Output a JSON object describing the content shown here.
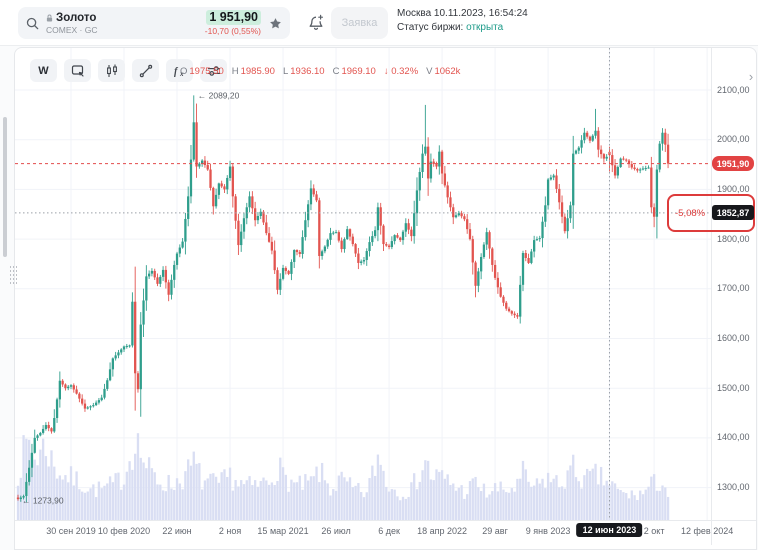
{
  "header": {
    "instrument": {
      "name": "Золото",
      "exchange": "COMEX · GC",
      "price": "1 951,90",
      "change": "-10,70 (0,55%)"
    },
    "order_button": "Заявка",
    "clock": "Москва 10.11.2023, 16:54:24",
    "status_label": "Статус биржи: ",
    "status_value": "открыта"
  },
  "toolbar": {
    "timeframe_label": "W"
  },
  "ohlc_legend": {
    "items": [
      {
        "label": "O",
        "value": "1975.50"
      },
      {
        "label": "H",
        "value": "1985.90"
      },
      {
        "label": "L",
        "value": "1936.10"
      },
      {
        "label": "C",
        "value": "1969.10"
      },
      {
        "label": "",
        "value": "↓ 0.32%"
      },
      {
        "label": "V",
        "value": "1062k"
      }
    ]
  },
  "chart_data": {
    "type": "candlestick",
    "title": "Золото COMEX · GC, недельный график",
    "timeframe": "W",
    "grid": true,
    "y_ticks": [
      2100,
      2000,
      1900,
      1800,
      1700,
      1600,
      1500,
      1400,
      1300
    ],
    "y_tick_format": "0,00",
    "x_labels": [
      {
        "text": "30 сен 2019",
        "week": 19
      },
      {
        "text": "10 фев 2020",
        "week": 38
      },
      {
        "text": "22 июн",
        "week": 57
      },
      {
        "text": "2 ноя",
        "week": 76
      },
      {
        "text": "15 мар 2021",
        "week": 95
      },
      {
        "text": "26 июл",
        "week": 114
      },
      {
        "text": "6 дек",
        "week": 133
      },
      {
        "text": "18 апр 2022",
        "week": 152
      },
      {
        "text": "29 авг",
        "week": 171
      },
      {
        "text": "9 янв 2023",
        "week": 190
      },
      {
        "text": "12 июн 2023",
        "week": 212,
        "highlight": true
      },
      {
        "text": "2 окт",
        "week": 228
      },
      {
        "text": "12 фев 2024",
        "week": 247
      }
    ],
    "current_price": {
      "value": 1951.9,
      "label": "1951,90"
    },
    "crosshair": {
      "week": 212,
      "price": 1852.87,
      "price_label": "1852,87",
      "percent_label": "-5,08%",
      "date_label": "12 июн 2023"
    },
    "annotations": [
      {
        "week": 63,
        "price": 2089.2,
        "text": "2089,20"
      },
      {
        "week": 0,
        "price": 1273.9,
        "text": "1273,90"
      }
    ],
    "weekly_close_anchors": [
      [
        0,
        1277
      ],
      [
        2,
        1283
      ],
      [
        4,
        1340
      ],
      [
        6,
        1400
      ],
      [
        8,
        1410
      ],
      [
        10,
        1426
      ],
      [
        12,
        1413
      ],
      [
        13,
        1440
      ],
      [
        15,
        1515
      ],
      [
        17,
        1500
      ],
      [
        19,
        1506
      ],
      [
        21,
        1489
      ],
      [
        24,
        1459
      ],
      [
        27,
        1466
      ],
      [
        30,
        1481
      ],
      [
        32,
        1516
      ],
      [
        34,
        1560
      ],
      [
        36,
        1572
      ],
      [
        38,
        1584
      ],
      [
        40,
        1586
      ],
      [
        41,
        1674
      ],
      [
        42,
        1530
      ],
      [
        43,
        1498
      ],
      [
        44,
        1628
      ],
      [
        46,
        1725
      ],
      [
        48,
        1736
      ],
      [
        50,
        1710
      ],
      [
        52,
        1738
      ],
      [
        54,
        1688
      ],
      [
        56,
        1748
      ],
      [
        57,
        1771
      ],
      [
        59,
        1795
      ],
      [
        61,
        1886
      ],
      [
        62,
        1960
      ],
      [
        63,
        2035
      ],
      [
        64,
        1946
      ],
      [
        66,
        1958
      ],
      [
        68,
        1940
      ],
      [
        70,
        1866
      ],
      [
        72,
        1912
      ],
      [
        74,
        1900
      ],
      [
        76,
        1946
      ],
      [
        77,
        1886
      ],
      [
        79,
        1788
      ],
      [
        81,
        1842
      ],
      [
        83,
        1886
      ],
      [
        85,
        1838
      ],
      [
        87,
        1855
      ],
      [
        89,
        1812
      ],
      [
        91,
        1777
      ],
      [
        93,
        1698
      ],
      [
        95,
        1742
      ],
      [
        97,
        1730
      ],
      [
        99,
        1778
      ],
      [
        101,
        1770
      ],
      [
        103,
        1838
      ],
      [
        105,
        1902
      ],
      [
        107,
        1878
      ],
      [
        108,
        1766
      ],
      [
        110,
        1785
      ],
      [
        112,
        1812
      ],
      [
        114,
        1814
      ],
      [
        116,
        1780
      ],
      [
        118,
        1820
      ],
      [
        120,
        1790
      ],
      [
        122,
        1752
      ],
      [
        124,
        1758
      ],
      [
        126,
        1794
      ],
      [
        128,
        1818
      ],
      [
        129,
        1864
      ],
      [
        131,
        1790
      ],
      [
        133,
        1784
      ],
      [
        135,
        1808
      ],
      [
        137,
        1798
      ],
      [
        139,
        1832
      ],
      [
        141,
        1806
      ],
      [
        143,
        1898
      ],
      [
        145,
        1972
      ],
      [
        146,
        1986
      ],
      [
        147,
        1922
      ],
      [
        148,
        1956
      ],
      [
        150,
        1946
      ],
      [
        151,
        1976
      ],
      [
        152,
        1932
      ],
      [
        154,
        1884
      ],
      [
        156,
        1844
      ],
      [
        158,
        1852
      ],
      [
        160,
        1840
      ],
      [
        162,
        1800
      ],
      [
        164,
        1706
      ],
      [
        166,
        1764
      ],
      [
        168,
        1814
      ],
      [
        170,
        1748
      ],
      [
        171,
        1722
      ],
      [
        173,
        1684
      ],
      [
        175,
        1660
      ],
      [
        177,
        1650
      ],
      [
        179,
        1644
      ],
      [
        181,
        1772
      ],
      [
        183,
        1752
      ],
      [
        185,
        1798
      ],
      [
        187,
        1802
      ],
      [
        189,
        1868
      ],
      [
        190,
        1920
      ],
      [
        192,
        1928
      ],
      [
        194,
        1874
      ],
      [
        196,
        1816
      ],
      [
        198,
        1868
      ],
      [
        199,
        1972
      ],
      [
        201,
        1984
      ],
      [
        203,
        2014
      ],
      [
        205,
        1998
      ],
      [
        207,
        2018
      ],
      [
        208,
        1980
      ],
      [
        210,
        1962
      ],
      [
        212,
        1969.1
      ],
      [
        214,
        1928
      ],
      [
        216,
        1962
      ],
      [
        218,
        1958
      ],
      [
        220,
        1944
      ],
      [
        222,
        1938
      ],
      [
        224,
        1942
      ],
      [
        226,
        1944
      ],
      [
        227,
        1864
      ],
      [
        228,
        1845
      ],
      [
        229,
        1940
      ],
      [
        230,
        1992
      ],
      [
        231,
        2014
      ],
      [
        232,
        1990
      ],
      [
        233,
        1951.9
      ]
    ],
    "volume_anchors": [
      [
        0,
        0.55
      ],
      [
        2,
        0.75
      ],
      [
        4,
        0.9
      ],
      [
        6,
        0.7
      ],
      [
        10,
        0.85
      ],
      [
        13,
        0.6
      ],
      [
        17,
        0.5
      ],
      [
        21,
        0.45
      ],
      [
        26,
        0.35
      ],
      [
        30,
        0.35
      ],
      [
        34,
        0.4
      ],
      [
        38,
        0.5
      ],
      [
        41,
        0.8
      ],
      [
        42,
        1.0
      ],
      [
        43,
        0.85
      ],
      [
        46,
        0.6
      ],
      [
        50,
        0.45
      ],
      [
        55,
        0.4
      ],
      [
        60,
        0.5
      ],
      [
        63,
        0.65
      ],
      [
        66,
        0.45
      ],
      [
        72,
        0.4
      ],
      [
        76,
        0.5
      ],
      [
        80,
        0.4
      ],
      [
        85,
        0.38
      ],
      [
        90,
        0.45
      ],
      [
        93,
        0.62
      ],
      [
        95,
        0.5
      ],
      [
        100,
        0.38
      ],
      [
        105,
        0.42
      ],
      [
        108,
        0.55
      ],
      [
        112,
        0.35
      ],
      [
        116,
        0.45
      ],
      [
        120,
        0.35
      ],
      [
        125,
        0.3
      ],
      [
        129,
        0.72
      ],
      [
        133,
        0.38
      ],
      [
        137,
        0.32
      ],
      [
        141,
        0.35
      ],
      [
        145,
        0.6
      ],
      [
        146,
        0.68
      ],
      [
        148,
        0.5
      ],
      [
        152,
        0.48
      ],
      [
        156,
        0.4
      ],
      [
        160,
        0.32
      ],
      [
        164,
        0.42
      ],
      [
        168,
        0.3
      ],
      [
        171,
        0.35
      ],
      [
        175,
        0.33
      ],
      [
        179,
        0.38
      ],
      [
        181,
        0.52
      ],
      [
        185,
        0.35
      ],
      [
        190,
        0.48
      ],
      [
        194,
        0.4
      ],
      [
        199,
        0.58
      ],
      [
        203,
        0.45
      ],
      [
        207,
        0.5
      ],
      [
        212,
        0.42
      ],
      [
        216,
        0.3
      ],
      [
        220,
        0.28
      ],
      [
        224,
        0.3
      ],
      [
        227,
        0.4
      ],
      [
        229,
        0.42
      ],
      [
        231,
        0.45
      ],
      [
        233,
        0.28
      ]
    ],
    "special_candles": {
      "0": {
        "low": 1273.9
      },
      "42": {
        "low": 1455
      },
      "63": {
        "high": 2089.2
      },
      "146": {
        "high": 2070
      },
      "207": {
        "high": 2062
      },
      "212": {
        "open": 1975.5,
        "high": 1985.9,
        "low": 1936.1,
        "close": 1969.1
      },
      "228": {
        "low": 1824
      }
    },
    "seed": 7,
    "colors": {
      "up": "#2f9e8c",
      "down": "#e2544f",
      "volume": "#d9def3",
      "grid": "#f1f3f8",
      "current_line": "#e24b4b",
      "crosshair": "#9aa0a8",
      "axis_text": "#62676f",
      "pill_current": "#e24343",
      "pill_cross": "#17181c",
      "highlight_box": "#dd3b3b",
      "annotation": "#5a5f66"
    }
  }
}
